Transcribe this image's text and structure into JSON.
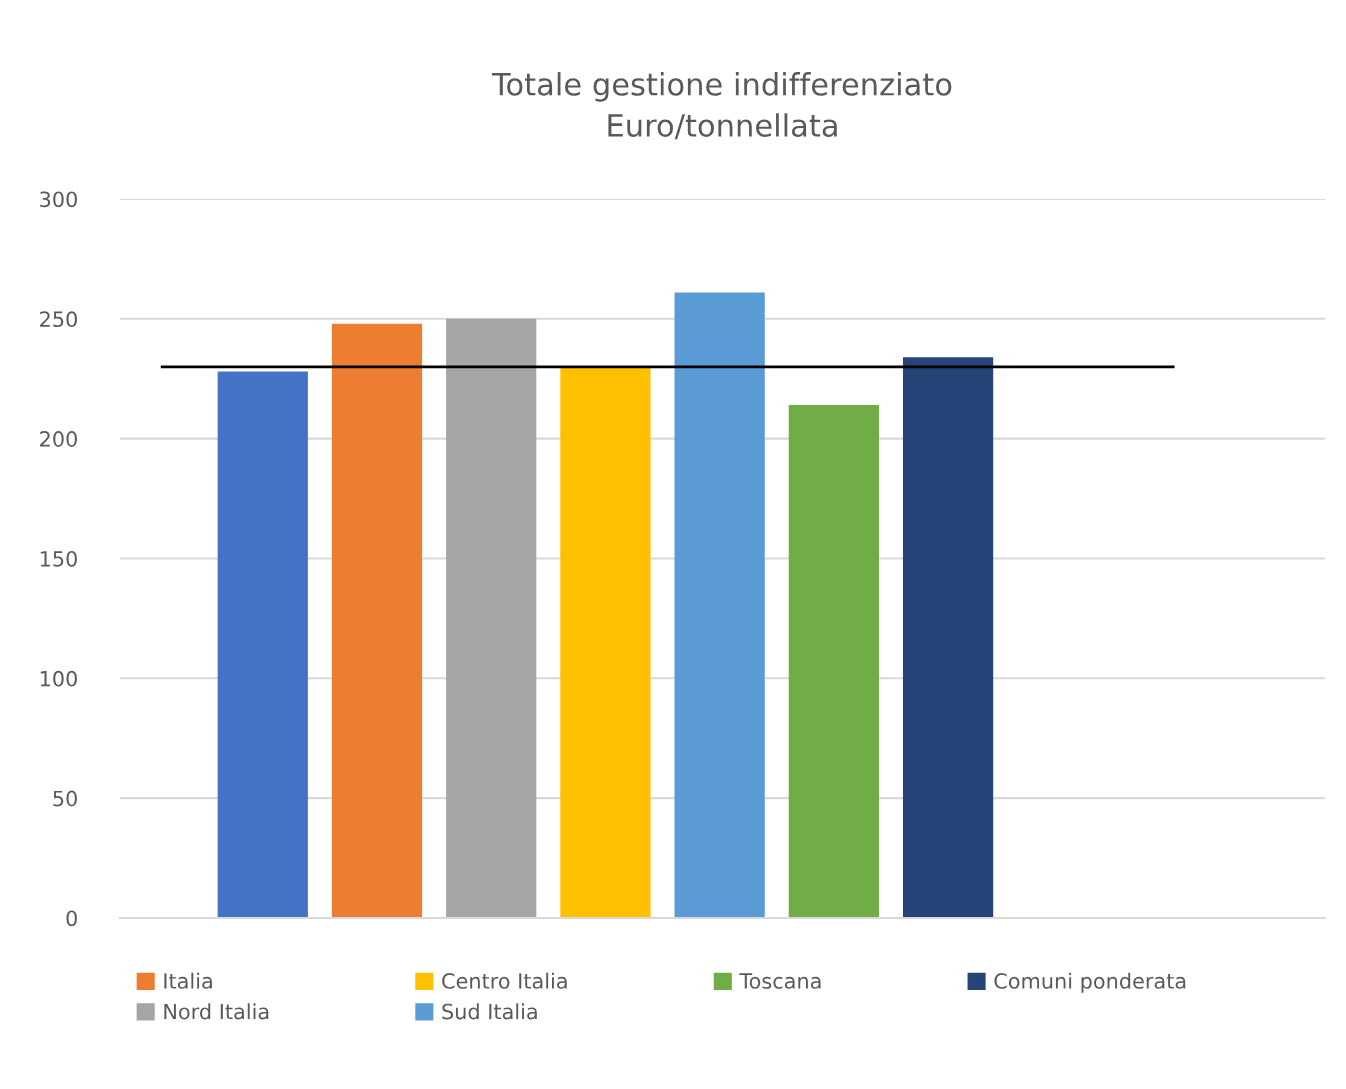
{
  "chart_data": {
    "type": "bar",
    "title": "Totale gestione indifferenziato\nEuro/tonnellata",
    "categories": [
      null
    ],
    "series": [
      {
        "color": "#4472c4",
        "values": [
          228
        ]
      },
      {
        "name": "Italia",
        "color": "#ed7d31",
        "values": [
          248
        ]
      },
      {
        "name": "Nord Italia",
        "color": "#a5a5a5",
        "values": [
          250
        ]
      },
      {
        "name": "Centro Italia",
        "color": "#ffc000",
        "values": [
          230
        ]
      },
      {
        "name": "Sud Italia",
        "color": "#5b9bd5",
        "values": [
          261
        ]
      },
      {
        "name": "Toscana",
        "color": "#70ad47",
        "values": [
          214
        ]
      },
      {
        "name": "Comuni ponderata",
        "color": "#264478",
        "values": [
          234
        ]
      }
    ],
    "ylim": [
      0,
      300
    ],
    "yticks": [
      0,
      50,
      100,
      150,
      200,
      250,
      300
    ],
    "ref_lines": [
      {
        "axis": "y",
        "value": 230,
        "color": "#000000"
      }
    ],
    "grid": "y",
    "legend": "bottom"
  }
}
